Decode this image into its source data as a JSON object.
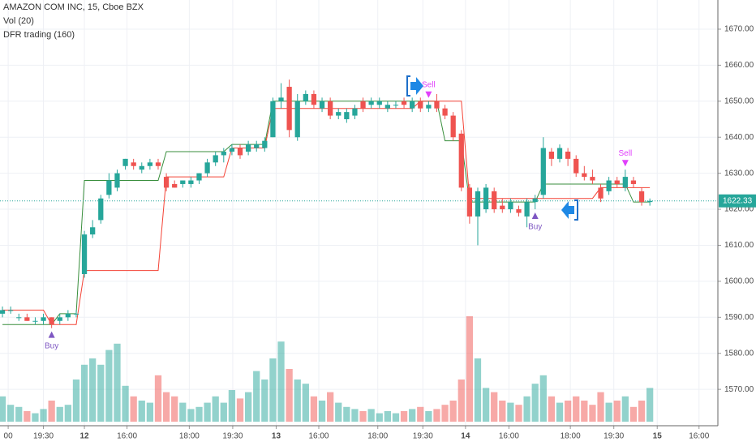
{
  "chart_data": {
    "type": "candlestick",
    "title": "AMAZON COM INC, 15, Cboe BZX",
    "indicators": [
      "Vol (20)",
      "DFR trading (160)"
    ],
    "open": [
      1591,
      1592,
      1590,
      1590,
      1589,
      1589,
      1590,
      1589,
      1590,
      1591,
      1602,
      1613,
      1617,
      1624,
      1626,
      1632,
      1633,
      1631,
      1632,
      1633,
      1629,
      1627,
      1627,
      1627,
      1628,
      1630,
      1633,
      1635,
      1636,
      1637,
      1636,
      1637,
      1637,
      1640,
      1650,
      1654,
      1640,
      1650,
      1652,
      1648,
      1650,
      1646,
      1645,
      1646,
      1650,
      1649,
      1649,
      1648,
      1649,
      1650,
      1648,
      1650,
      1648,
      1650,
      1648,
      1646,
      1641,
      1626,
      1618,
      1620,
      1625,
      1621,
      1620,
      1620,
      1618,
      1622,
      1624,
      1636,
      1634,
      1636,
      1634,
      1630,
      1629,
      1626,
      1625,
      1628,
      1626,
      1628,
      1625,
      1622
    ],
    "high": [
      1593,
      1593,
      1591,
      1591,
      1590,
      1591,
      1590,
      1591,
      1592,
      1592,
      1614,
      1617,
      1624,
      1630,
      1631,
      1634,
      1634,
      1633,
      1634,
      1634,
      1630,
      1628,
      1628,
      1629,
      1630,
      1634,
      1636,
      1637,
      1638,
      1638,
      1639,
      1639,
      1640,
      1651,
      1655,
      1656,
      1652,
      1653,
      1653,
      1651,
      1651,
      1648,
      1648,
      1649,
      1651,
      1651,
      1651,
      1650,
      1650,
      1651,
      1651,
      1651,
      1650,
      1652,
      1649,
      1647,
      1642,
      1627,
      1626,
      1627,
      1626,
      1623,
      1623,
      1621,
      1623,
      1624,
      1640,
      1637,
      1638,
      1637,
      1635,
      1632,
      1631,
      1627,
      1629,
      1629,
      1631,
      1629,
      1626,
      1623
    ],
    "low": [
      1590,
      1591,
      1589,
      1589,
      1588,
      1588,
      1587,
      1588,
      1589,
      1590,
      1601,
      1612,
      1616,
      1623,
      1625,
      1631,
      1631,
      1630,
      1631,
      1631,
      1625,
      1626,
      1626,
      1626,
      1627,
      1629,
      1632,
      1633,
      1635,
      1634,
      1635,
      1636,
      1636,
      1640,
      1648,
      1640,
      1639,
      1649,
      1648,
      1647,
      1645,
      1645,
      1644,
      1645,
      1647,
      1648,
      1648,
      1647,
      1648,
      1648,
      1647,
      1647,
      1647,
      1647,
      1645,
      1639,
      1625,
      1616,
      1610,
      1619,
      1619,
      1619,
      1619,
      1618,
      1615,
      1620,
      1623,
      1632,
      1633,
      1632,
      1629,
      1628,
      1627,
      1622,
      1624,
      1626,
      1625,
      1626,
      1621,
      1621
    ],
    "close": [
      1592,
      1592,
      1590,
      1589,
      1589,
      1590,
      1588,
      1590,
      1591,
      1591,
      1613,
      1615,
      1623,
      1628,
      1630,
      1634,
      1632,
      1632,
      1633,
      1632,
      1626,
      1626,
      1628,
      1628,
      1630,
      1633,
      1635,
      1636,
      1637,
      1635,
      1638,
      1638,
      1639,
      1650,
      1651,
      1642,
      1650,
      1652,
      1649,
      1650,
      1646,
      1647,
      1647,
      1648,
      1648,
      1650,
      1650,
      1649,
      1649,
      1649,
      1650,
      1648,
      1649,
      1648,
      1646,
      1640,
      1626,
      1618,
      1625,
      1626,
      1620,
      1620,
      1622,
      1619,
      1622,
      1623,
      1637,
      1634,
      1637,
      1634,
      1630,
      1629,
      1628,
      1623,
      1628,
      1627,
      1629,
      1627,
      1622,
      1622.33
    ],
    "volume": [
      12,
      8,
      7,
      5,
      4,
      6,
      10,
      7,
      8,
      20,
      27,
      30,
      27,
      34,
      37,
      17,
      12,
      10,
      9,
      22,
      14,
      12,
      9,
      6,
      7,
      9,
      12,
      9,
      15,
      11,
      14,
      24,
      20,
      30,
      38,
      25,
      20,
      18,
      12,
      10,
      14,
      9,
      7,
      6,
      5,
      6,
      4,
      5,
      4,
      5,
      6,
      7,
      5,
      6,
      8,
      10,
      20,
      50,
      30,
      16,
      14,
      10,
      9,
      8,
      12,
      18,
      22,
      12,
      9,
      10,
      12,
      10,
      8,
      14,
      9,
      10,
      12,
      7,
      10,
      16
    ],
    "series": [
      {
        "name": "DFR upper",
        "color": "#388e3c",
        "values": [
          1588,
          1588,
          1588,
          1588,
          1588,
          1588,
          1588,
          1591,
          1591,
          1591,
          1628,
          1628,
          1628,
          1628,
          1628,
          1628,
          1628,
          1628,
          1628,
          1628,
          1636,
          1636,
          1636,
          1636,
          1636,
          1636,
          1636,
          1636,
          1638,
          1638,
          1638,
          1638,
          1638,
          1650,
          1650,
          1650,
          1650,
          1650,
          1650,
          1650,
          1650,
          1650,
          1650,
          1650,
          1650,
          1650,
          1650,
          1650,
          1650,
          1650,
          1650,
          1650,
          1650,
          1650,
          1639,
          1639,
          1639,
          1622,
          1622,
          1622,
          1622,
          1622,
          1622,
          1622,
          1622,
          1622,
          1627,
          1627,
          1627,
          1627,
          1627,
          1627,
          1627,
          1627,
          1627,
          1627,
          1627,
          1622,
          1622,
          1622
        ]
      },
      {
        "name": "DFR lower",
        "color": "#f44336",
        "values": [
          1592,
          1592,
          1592,
          1592,
          1592,
          1592,
          1588,
          1588,
          1588,
          1588,
          1603,
          1603,
          1603,
          1603,
          1603,
          1603,
          1603,
          1603,
          1603,
          1603,
          1629,
          1629,
          1629,
          1629,
          1629,
          1629,
          1629,
          1629,
          1637,
          1637,
          1637,
          1637,
          1637,
          1648,
          1648,
          1648,
          1648,
          1648,
          1648,
          1648,
          1648,
          1648,
          1648,
          1648,
          1648,
          1648,
          1648,
          1648,
          1648,
          1648,
          1648,
          1650,
          1650,
          1650,
          1650,
          1650,
          1650,
          1623,
          1623,
          1623,
          1623,
          1623,
          1623,
          1623,
          1623,
          1623,
          1623,
          1623,
          1623,
          1623,
          1623,
          1623,
          1623,
          1626,
          1626,
          1626,
          1626,
          1626,
          1626,
          1626
        ]
      }
    ],
    "annotations": [
      {
        "text": "Buy",
        "index": 6
      },
      {
        "text": "Sell",
        "index": 52
      },
      {
        "text": "Buy",
        "index": 65
      },
      {
        "text": "Sell",
        "index": 76
      }
    ],
    "last_price": 1622.33,
    "up_color": "#26a69a",
    "down_color": "#ef5350",
    "xlim": [
      -0.3,
      87.3
    ],
    "xticks": [
      {
        "value": 0.7,
        "label": "00"
      },
      {
        "value": 5,
        "label": "19:30"
      },
      {
        "value": 10,
        "label": "12"
      },
      {
        "value": 15.2,
        "label": "16:00"
      },
      {
        "value": 22.8,
        "label": "18:00"
      },
      {
        "value": 28.1,
        "label": "19:30"
      },
      {
        "value": 33.4,
        "label": "13"
      },
      {
        "value": 38.6,
        "label": "16:00"
      },
      {
        "value": 45.8,
        "label": "18:00"
      },
      {
        "value": 51.3,
        "label": "19:30"
      },
      {
        "value": 56.5,
        "label": "14"
      },
      {
        "value": 61.8,
        "label": "16:00"
      },
      {
        "value": 69.3,
        "label": "18:00"
      },
      {
        "value": 74.6,
        "label": "19:30"
      },
      {
        "value": 79.9,
        "label": "15"
      },
      {
        "value": 85,
        "label": "16:00"
      }
    ],
    "ylim": [
      1559.9,
      1678.1
    ],
    "yticks": [
      {
        "value": 1570,
        "label": "1570.00"
      },
      {
        "value": 1580,
        "label": "1580.00"
      },
      {
        "value": 1590,
        "label": "1590.00"
      },
      {
        "value": 1600,
        "label": "1600.00"
      },
      {
        "value": 1610,
        "label": "1610.00"
      },
      {
        "value": 1620,
        "label": "1620.00"
      },
      {
        "value": 1630,
        "label": "1630.00"
      },
      {
        "value": 1640,
        "label": "1640.00"
      },
      {
        "value": 1650,
        "label": "1650.00"
      },
      {
        "value": 1660,
        "label": "1660.00"
      },
      {
        "value": 1670,
        "label": "1670.00"
      }
    ],
    "grid": true
  }
}
